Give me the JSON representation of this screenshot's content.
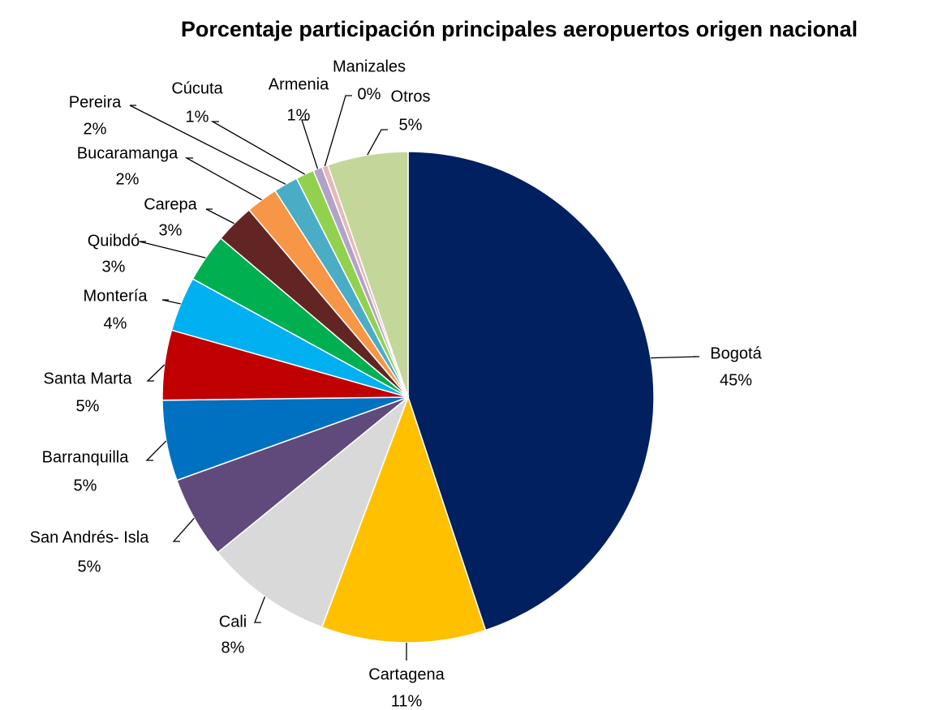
{
  "chart_data": {
    "type": "pie",
    "title": "Porcentaje participación principales aeropuertos origen nacional",
    "categories": [
      "Bogotá",
      "Cartagena",
      "Cali",
      "San Andrés- Isla",
      "Barranquilla",
      "Santa Marta",
      "Montería",
      "Quibdó",
      "Carepa",
      "Bucaramanga",
      "Pereira",
      "Cúcuta",
      "Armenia",
      "Manizales",
      "Otros"
    ],
    "values": [
      44.9,
      10.8,
      8.4,
      5.4,
      5.3,
      4.6,
      3.6,
      3.2,
      2.6,
      2.1,
      1.6,
      1.2,
      0.6,
      0.4,
      5.3
    ],
    "value_labels": [
      "45%",
      "11%",
      "8%",
      "5%",
      "5%",
      "5%",
      "4%",
      "3%",
      "3%",
      "2%",
      "2%",
      "1%",
      "1%",
      "0%",
      "5%"
    ],
    "colors": [
      "#002060",
      "#FFC000",
      "#D9D9D9",
      "#604A7B",
      "#0070C0",
      "#C00000",
      "#00B0F0",
      "#00B050",
      "#632523",
      "#F79646",
      "#4BACC6",
      "#92D050",
      "#B3A2C7",
      "#E6B9B8",
      "#C4D79B"
    ]
  }
}
